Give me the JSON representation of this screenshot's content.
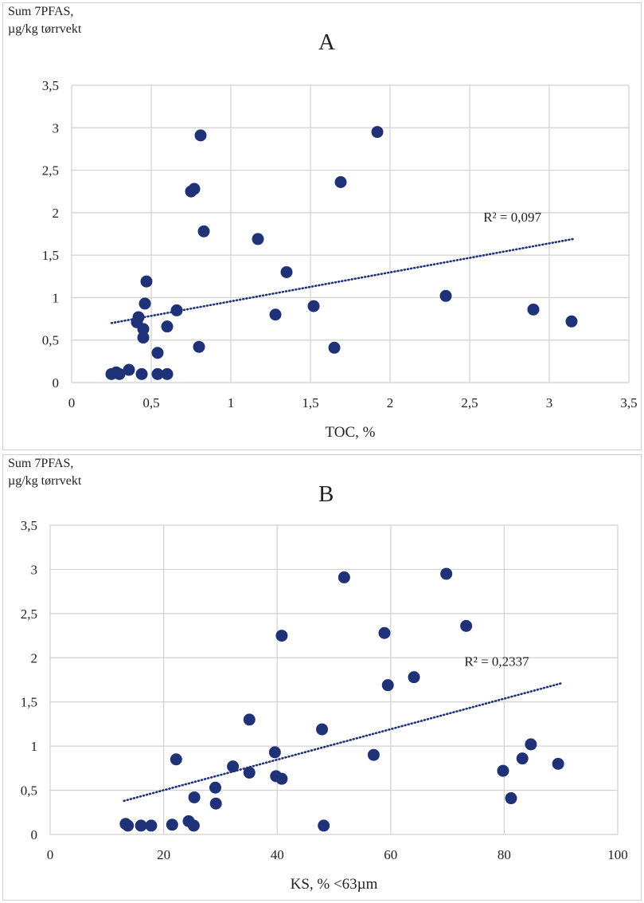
{
  "chart_data": [
    {
      "type": "scatter",
      "panel_label": "A",
      "title": "",
      "ylabel_lines": [
        "Sum 7PFAS,",
        "µg/kg tørrvekt"
      ],
      "xlabel": "TOC, %",
      "xlim": [
        0,
        3.5
      ],
      "ylim": [
        0,
        3.5
      ],
      "xticks": [
        0,
        0.5,
        1,
        1.5,
        2,
        2.5,
        3,
        3.5
      ],
      "xtick_labels": [
        "0",
        "0,5",
        "1",
        "1,5",
        "2",
        "2,5",
        "3",
        "3,5"
      ],
      "yticks": [
        0,
        0.5,
        1,
        1.5,
        2,
        2.5,
        3,
        3.5
      ],
      "ytick_labels": [
        "0",
        "0,5",
        "1",
        "1,5",
        "2",
        "2,5",
        "3",
        "3,5"
      ],
      "grid": true,
      "trendline": {
        "type": "linear",
        "x_range": [
          0.25,
          3.15
        ],
        "y_range": [
          0.7,
          1.69
        ],
        "label": "R² = 0,097"
      },
      "points": [
        [
          0.25,
          0.1
        ],
        [
          0.28,
          0.12
        ],
        [
          0.3,
          0.1
        ],
        [
          0.36,
          0.15
        ],
        [
          0.41,
          0.71
        ],
        [
          0.42,
          0.77
        ],
        [
          0.44,
          0.1
        ],
        [
          0.45,
          0.53
        ],
        [
          0.45,
          0.63
        ],
        [
          0.46,
          0.93
        ],
        [
          0.47,
          1.19
        ],
        [
          0.54,
          0.1
        ],
        [
          0.54,
          0.35
        ],
        [
          0.6,
          0.1
        ],
        [
          0.6,
          0.66
        ],
        [
          0.66,
          0.85
        ],
        [
          0.75,
          2.25
        ],
        [
          0.77,
          2.28
        ],
        [
          0.8,
          0.42
        ],
        [
          0.81,
          2.91
        ],
        [
          0.83,
          1.78
        ],
        [
          1.17,
          1.69
        ],
        [
          1.28,
          0.8
        ],
        [
          1.35,
          1.3
        ],
        [
          1.52,
          0.9
        ],
        [
          1.65,
          0.41
        ],
        [
          1.69,
          2.36
        ],
        [
          1.92,
          2.95
        ],
        [
          2.35,
          1.02
        ],
        [
          2.9,
          0.86
        ],
        [
          3.14,
          0.72
        ]
      ]
    },
    {
      "type": "scatter",
      "panel_label": "B",
      "title": "",
      "ylabel_lines": [
        "Sum 7PFAS,",
        "µg/kg tørrvekt"
      ],
      "xlabel": "KS, % <63µm",
      "xlim": [
        0,
        100
      ],
      "ylim": [
        0,
        3.5
      ],
      "xticks": [
        0,
        20,
        40,
        60,
        80,
        100
      ],
      "xtick_labels": [
        "0",
        "20",
        "40",
        "60",
        "80",
        "100"
      ],
      "yticks": [
        0,
        0.5,
        1,
        1.5,
        2,
        2.5,
        3,
        3.5
      ],
      "ytick_labels": [
        "0",
        "0,5",
        "1",
        "1,5",
        "2",
        "2,5",
        "3",
        "3,5"
      ],
      "grid": true,
      "trendline": {
        "type": "linear",
        "x_range": [
          13,
          90
        ],
        "y_range": [
          0.38,
          1.71
        ],
        "label": "R² = 0,2337"
      },
      "points": [
        [
          13.3,
          0.12
        ],
        [
          13.7,
          0.1
        ],
        [
          16,
          0.1
        ],
        [
          17.8,
          0.1
        ],
        [
          21.5,
          0.11
        ],
        [
          22.2,
          0.85
        ],
        [
          24.4,
          0.15
        ],
        [
          25.3,
          0.1
        ],
        [
          25.4,
          0.42
        ],
        [
          29.1,
          0.53
        ],
        [
          29.2,
          0.35
        ],
        [
          32.2,
          0.77
        ],
        [
          35.1,
          1.3
        ],
        [
          35.1,
          0.7
        ],
        [
          39.6,
          0.93
        ],
        [
          39.8,
          0.66
        ],
        [
          40.8,
          0.63
        ],
        [
          40.8,
          2.25
        ],
        [
          47.9,
          1.19
        ],
        [
          48.2,
          0.1
        ],
        [
          51.8,
          2.91
        ],
        [
          57,
          0.9
        ],
        [
          58.9,
          2.28
        ],
        [
          59.5,
          1.69
        ],
        [
          64.1,
          1.78
        ],
        [
          69.8,
          2.95
        ],
        [
          73.3,
          2.36
        ],
        [
          79.8,
          0.72
        ],
        [
          81.2,
          0.41
        ],
        [
          83.2,
          0.86
        ],
        [
          84.7,
          1.02
        ],
        [
          89.5,
          0.8
        ]
      ]
    }
  ],
  "colors": {
    "marker": "#1f3278",
    "trend": "#1f3278",
    "grid": "#d0d0d0",
    "text": "#222222"
  }
}
